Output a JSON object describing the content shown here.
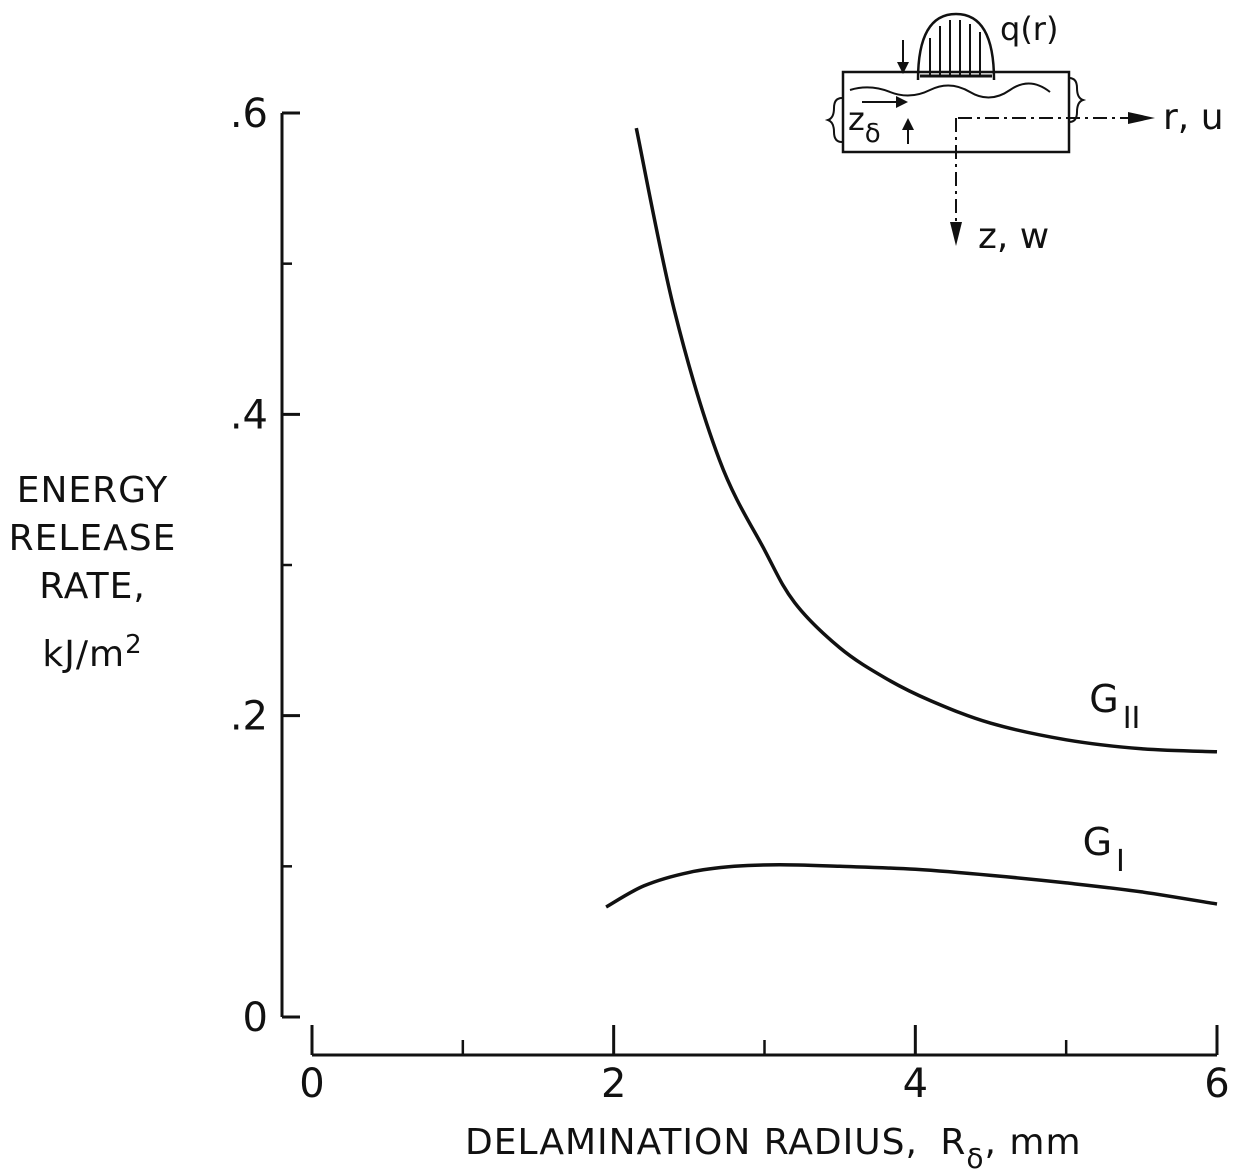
{
  "chart_data": {
    "type": "line",
    "title": "",
    "xlabel": {
      "main": "DELAMINATION RADIUS,",
      "symbol": "R",
      "symbol_sub": "δ",
      "unit": ", mm"
    },
    "ylabel": {
      "line1": "ENERGY",
      "line2": "RELEASE",
      "line3": "RATE,",
      "unit": "kJ/m",
      "unit_sup": "2"
    },
    "xlim": [
      0,
      6
    ],
    "ylim": [
      0,
      0.6
    ],
    "x_ticks": [
      {
        "v": 0,
        "label": "0"
      },
      {
        "v": 2,
        "label": "2"
      },
      {
        "v": 4,
        "label": "4"
      },
      {
        "v": 6,
        "label": "6"
      }
    ],
    "x_minor_ticks": [
      1,
      3,
      5
    ],
    "y_ticks": [
      {
        "v": 0,
        "label": "0"
      },
      {
        "v": 0.2,
        "label": ".2"
      },
      {
        "v": 0.4,
        "label": ".4"
      },
      {
        "v": 0.6,
        "label": ".6"
      }
    ],
    "y_minor_ticks": [
      0.1,
      0.3,
      0.5
    ],
    "grid": false,
    "series": [
      {
        "name": "G_II",
        "label_main": "G",
        "label_sub": "II",
        "color": "#111111",
        "x": [
          2.15,
          2.4,
          2.7,
          3.0,
          3.2,
          3.5,
          3.8,
          4.1,
          4.5,
          5.0,
          5.5,
          6.0
        ],
        "y": [
          0.59,
          0.47,
          0.37,
          0.31,
          0.275,
          0.245,
          0.225,
          0.21,
          0.195,
          0.184,
          0.178,
          0.176
        ]
      },
      {
        "name": "G_I",
        "label_main": "G",
        "label_sub": "I",
        "color": "#111111",
        "x": [
          1.95,
          2.2,
          2.5,
          2.8,
          3.1,
          3.5,
          4.0,
          4.5,
          5.0,
          5.5,
          6.0
        ],
        "y": [
          0.073,
          0.087,
          0.096,
          0.1,
          0.101,
          0.1,
          0.098,
          0.094,
          0.089,
          0.083,
          0.075
        ]
      }
    ]
  },
  "inset": {
    "load_label": "q(r)",
    "radial_axis_label": "r, u",
    "vertical_axis_label": "z, w",
    "offset_label": "z",
    "offset_sub": "δ"
  }
}
